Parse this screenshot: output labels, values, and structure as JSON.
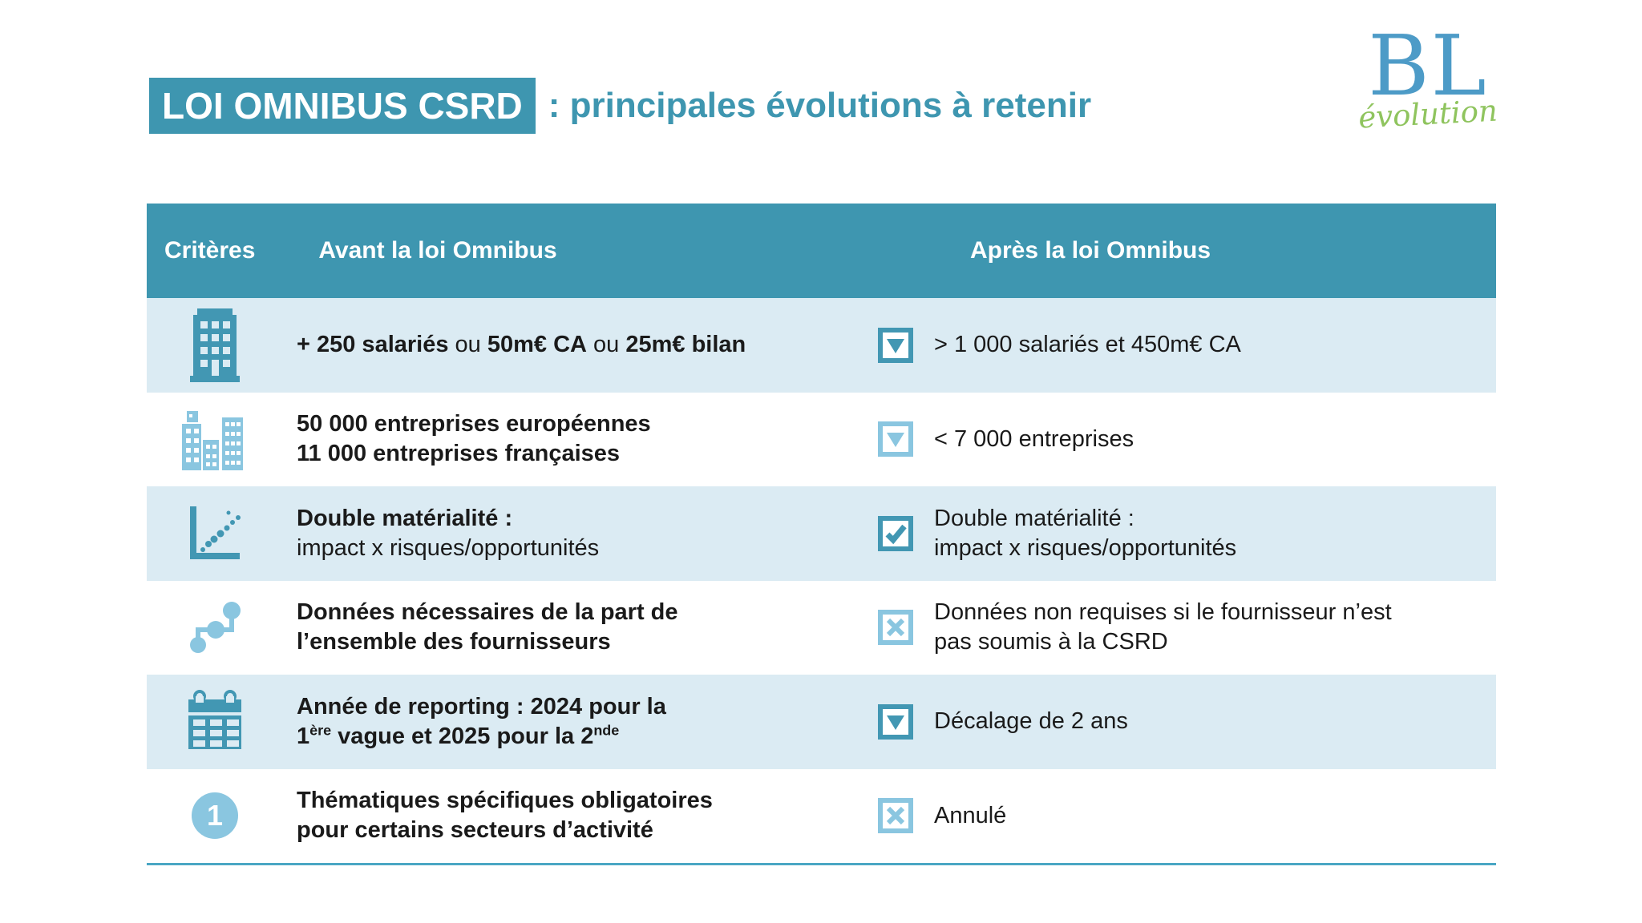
{
  "title": {
    "highlight": "LOI OMNIBUS CSRD",
    "rest": ": principales évolutions à retenir"
  },
  "logo": {
    "main": "BL",
    "sub": "évolution"
  },
  "colors": {
    "teal": "#3e96b0",
    "teal_icon": "#4297b3",
    "light_blue": "#8ac6e0",
    "row_shade": "#dbebf3",
    "divider": "#4aa6c4",
    "logo_blue": "#4d9bc7",
    "logo_green": "#8fc45e",
    "text": "#1a1a1a"
  },
  "table": {
    "header": {
      "criteres": "Critères",
      "avant": "Avant la loi Omnibus",
      "apres": "Après la loi Omnibus"
    },
    "rows": [
      {
        "icon": "building-icon",
        "icon_tone": "dark",
        "avant": [
          {
            "t": "+ 250 salariés",
            "b": true
          },
          {
            "t": " ou ",
            "b": false
          },
          {
            "t": "50m€ CA",
            "b": true
          },
          {
            "t": " ou ",
            "b": false
          },
          {
            "t": "25m€ bilan",
            "b": true
          }
        ],
        "apres_icon": "triangle-down-box-icon",
        "apres_tone": "dark",
        "apres": [
          {
            "t": "> 1 000 salariés et 450m€ CA",
            "b": false
          }
        ]
      },
      {
        "icon": "city-buildings-icon",
        "icon_tone": "light",
        "avant": [
          {
            "t": "50 000 entreprises européennes",
            "b": true
          },
          {
            "br": true
          },
          {
            "t": "11 000 entreprises françaises",
            "b": true
          }
        ],
        "apres_icon": "triangle-down-box-icon",
        "apres_tone": "light",
        "apres": [
          {
            "t": "< 7 000 entreprises",
            "b": false
          }
        ]
      },
      {
        "icon": "scatter-chart-icon",
        "icon_tone": "dark",
        "avant": [
          {
            "t": "Double matérialité :",
            "b": true
          },
          {
            "br": true
          },
          {
            "t": "impact x risques/opportunités",
            "b": false
          }
        ],
        "apres_icon": "checkbox-checked-icon",
        "apres_tone": "dark",
        "apres": [
          {
            "t": "Double matérialité :",
            "b": false
          },
          {
            "br": true
          },
          {
            "t": "impact x risques/opportunités",
            "b": false
          }
        ]
      },
      {
        "icon": "flow-steps-icon",
        "icon_tone": "light",
        "avant": [
          {
            "t": "Données nécessaires de la part de",
            "b": true
          },
          {
            "br": true
          },
          {
            "t": "l’ensemble des fournisseurs",
            "b": true
          }
        ],
        "apres_icon": "checkbox-cross-icon",
        "apres_tone": "light",
        "apres": [
          {
            "t": "Données non requises si le fournisseur n’est",
            "b": false
          },
          {
            "br": true
          },
          {
            "t": "pas soumis à la CSRD",
            "b": false
          }
        ]
      },
      {
        "icon": "calendar-icon",
        "icon_tone": "dark",
        "avant": [
          {
            "t": "Année de reporting : 2024 pour la",
            "b": true
          },
          {
            "br": true
          },
          {
            "t": "1",
            "b": true
          },
          {
            "t": "ère",
            "b": true,
            "sup": true
          },
          {
            "t": " vague et 2025 pour la 2",
            "b": true
          },
          {
            "t": "nde",
            "b": true,
            "sup": true
          }
        ],
        "apres_icon": "triangle-down-box-icon",
        "apres_tone": "dark",
        "apres": [
          {
            "t": "Décalage de 2 ans",
            "b": false
          }
        ]
      },
      {
        "icon": "one-circle-icon",
        "icon_label": "1",
        "icon_tone": "light",
        "avant": [
          {
            "t": "Thématiques spécifiques obligatoires",
            "b": true
          },
          {
            "br": true
          },
          {
            "t": "pour certains secteurs d’activité",
            "b": true
          }
        ],
        "apres_icon": "checkbox-cross-icon",
        "apres_tone": "light",
        "apres": [
          {
            "t": "Annulé",
            "b": false
          }
        ]
      }
    ]
  }
}
